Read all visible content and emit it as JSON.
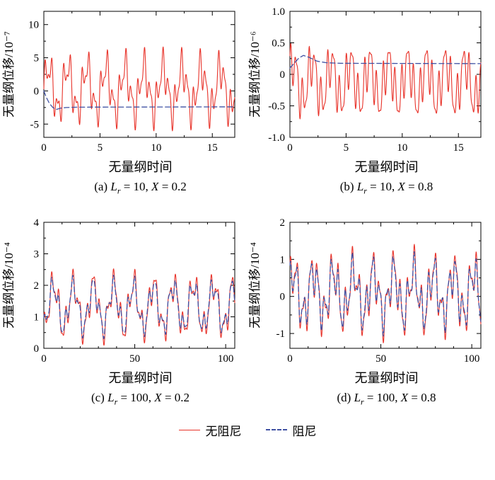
{
  "page": {
    "background": "#ffffff"
  },
  "colors": {
    "undamped": "#e8332a",
    "damped": "#3f51a3",
    "axis": "#000000"
  },
  "legend": {
    "items": [
      {
        "label": "无阻尼",
        "color": "#e8332a",
        "style": "solid"
      },
      {
        "label": "阻尼",
        "color": "#3f51a3",
        "style": "dashed"
      }
    ]
  },
  "chart_data": [
    {
      "id": "a",
      "type": "line",
      "xlabel": "无量纲时间",
      "ylabel": "无量纲位移/10⁻⁷",
      "xlim": [
        0,
        17
      ],
      "ylim": [
        -7,
        12
      ],
      "xticks": [
        {
          "v": 0,
          "l": "0"
        },
        {
          "v": 5,
          "l": "5"
        },
        {
          "v": 10,
          "l": "10"
        },
        {
          "v": 15,
          "l": "15"
        }
      ],
      "yticks": [
        {
          "v": -5,
          "l": "-5"
        },
        {
          "v": 0,
          "l": "0"
        },
        {
          "v": 5,
          "l": "5"
        },
        {
          "v": 10,
          "l": "10"
        }
      ],
      "x_minor_step": 2.5,
      "y_minor_step": 2.5,
      "grid": false,
      "caption": [
        {
          "t": "(a) "
        },
        {
          "t": "L",
          "i": true
        },
        {
          "t": "r",
          "sub": true
        },
        {
          "t": " = 10, "
        },
        {
          "t": "X",
          "i": true
        },
        {
          "t": " = 0.2"
        }
      ],
      "series": [
        {
          "name": "无阻尼",
          "color": "#e8332a",
          "width": 1.1,
          "synth": {
            "offset": 0.3,
            "components": [
              [
                3.2,
                1.7,
                0
              ],
              [
                2.2,
                0.55,
                0
              ],
              [
                1.2,
                0.33,
                0
              ]
            ]
          }
        },
        {
          "name": "阻尼",
          "color": "#3f51a3",
          "width": 1.3,
          "dash": "7 4",
          "points": [
            [
              0,
              0
            ],
            [
              0.2,
              -0.9
            ],
            [
              0.5,
              -1.9
            ],
            [
              0.8,
              -2.5
            ],
            [
              1.1,
              -2.8
            ],
            [
              1.5,
              -2.6
            ],
            [
              2,
              -2.5
            ],
            [
              3,
              -2.45
            ],
            [
              17,
              -2.4
            ]
          ]
        }
      ]
    },
    {
      "id": "b",
      "type": "line",
      "xlabel": "无量纲时间",
      "ylabel": "无量纲位移/10⁻⁶",
      "xlim": [
        0,
        17
      ],
      "ylim": [
        -1,
        1
      ],
      "xticks": [
        {
          "v": 0,
          "l": "0"
        },
        {
          "v": 5,
          "l": "5"
        },
        {
          "v": 10,
          "l": "10"
        },
        {
          "v": 15,
          "l": "15"
        }
      ],
      "yticks": [
        {
          "v": -1,
          "l": "-1.0"
        },
        {
          "v": -0.5,
          "l": "-0.5"
        },
        {
          "v": 0,
          "l": "0"
        },
        {
          "v": 0.5,
          "l": "0.5"
        },
        {
          "v": 1,
          "l": "1.0"
        }
      ],
      "x_minor_step": 2.5,
      "y_minor_step": 0.25,
      "grid": false,
      "caption": [
        {
          "t": "(b) "
        },
        {
          "t": "L",
          "i": true
        },
        {
          "t": "r",
          "sub": true
        },
        {
          "t": " = 10, "
        },
        {
          "t": "X",
          "i": true
        },
        {
          "t": " = 0.8"
        }
      ],
      "series": [
        {
          "name": "无阻尼",
          "color": "#e8332a",
          "width": 1.1,
          "synth": {
            "offset": -0.12,
            "components": [
              [
                0.32,
                1.7,
                0.5
              ],
              [
                0.28,
                0.55,
                1.2
              ],
              [
                0.14,
                0.33,
                0
              ]
            ]
          }
        },
        {
          "name": "阻尼",
          "color": "#3f51a3",
          "width": 1.3,
          "dash": "7 4",
          "points": [
            [
              0,
              0.1
            ],
            [
              0.4,
              0.18
            ],
            [
              0.8,
              0.26
            ],
            [
              1.2,
              0.3
            ],
            [
              1.7,
              0.27
            ],
            [
              2.4,
              0.21
            ],
            [
              3.2,
              0.185
            ],
            [
              4.5,
              0.175
            ],
            [
              17,
              0.17
            ]
          ]
        }
      ]
    },
    {
      "id": "c",
      "type": "line",
      "xlabel": "无量纲时间",
      "ylabel": "无量纲位移/10⁻⁴",
      "xlim": [
        0,
        105
      ],
      "ylim": [
        0,
        4
      ],
      "xticks": [
        {
          "v": 0,
          "l": "0"
        },
        {
          "v": 50,
          "l": "50"
        },
        {
          "v": 100,
          "l": "100"
        }
      ],
      "yticks": [
        {
          "v": 0,
          "l": "0"
        },
        {
          "v": 1,
          "l": "1"
        },
        {
          "v": 2,
          "l": "2"
        },
        {
          "v": 3,
          "l": "3"
        },
        {
          "v": 4,
          "l": "4"
        }
      ],
      "x_minor_step": 10,
      "y_minor_step": 0.5,
      "grid": false,
      "caption": [
        {
          "t": "(c) "
        },
        {
          "t": "L",
          "i": true
        },
        {
          "t": "r",
          "sub": true
        },
        {
          "t": " = 100, "
        },
        {
          "t": "X",
          "i": true
        },
        {
          "t": " = 0.2"
        }
      ],
      "series": [
        {
          "name": "无阻尼",
          "color": "#e8332a",
          "width": 1.1,
          "synth": {
            "offset": 1.32,
            "components": [
              [
                0.7,
                11,
                -1.5
              ],
              [
                0.38,
                3.8,
                0.6
              ],
              [
                0.18,
                2.0,
                1.0
              ]
            ]
          }
        },
        {
          "name": "阻尼",
          "color": "#3f51a3",
          "width": 1.3,
          "dash": "7 4",
          "synth": {
            "offset": 1.32,
            "components": [
              [
                0.64,
                11,
                -1.42
              ],
              [
                0.3,
                3.8,
                0.7
              ],
              [
                0.1,
                2.0,
                1.2
              ]
            ]
          }
        }
      ]
    },
    {
      "id": "d",
      "type": "line",
      "xlabel": "无量纲时间",
      "ylabel": "无量纲位移/10⁻⁴",
      "xlim": [
        0,
        105
      ],
      "ylim": [
        -1.4,
        2
      ],
      "xticks": [
        {
          "v": 0,
          "l": "0"
        },
        {
          "v": 50,
          "l": "50"
        },
        {
          "v": 100,
          "l": "100"
        }
      ],
      "yticks": [
        {
          "v": -1,
          "l": "-1"
        },
        {
          "v": 0,
          "l": "0"
        },
        {
          "v": 1,
          "l": "1"
        },
        {
          "v": 2,
          "l": "2"
        }
      ],
      "x_minor_step": 10,
      "y_minor_step": 0.5,
      "grid": false,
      "caption": [
        {
          "t": "(d) "
        },
        {
          "t": "L",
          "i": true
        },
        {
          "t": "r",
          "sub": true
        },
        {
          "t": " = 100, "
        },
        {
          "t": "X",
          "i": true
        },
        {
          "t": " = 0.8"
        }
      ],
      "series": [
        {
          "name": "无阻尼",
          "color": "#e8332a",
          "width": 1.1,
          "synth": {
            "offset": 0.08,
            "components": [
              [
                0.62,
                11,
                0.4
              ],
              [
                0.5,
                3.8,
                1.5
              ],
              [
                0.22,
                2.0,
                0.3
              ]
            ]
          }
        },
        {
          "name": "阻尼",
          "color": "#3f51a3",
          "width": 1.3,
          "dash": "7 4",
          "synth": {
            "offset": 0.08,
            "components": [
              [
                0.56,
                11,
                0.46
              ],
              [
                0.44,
                3.8,
                1.55
              ],
              [
                0.15,
                2.0,
                0.5
              ]
            ]
          }
        }
      ]
    }
  ]
}
